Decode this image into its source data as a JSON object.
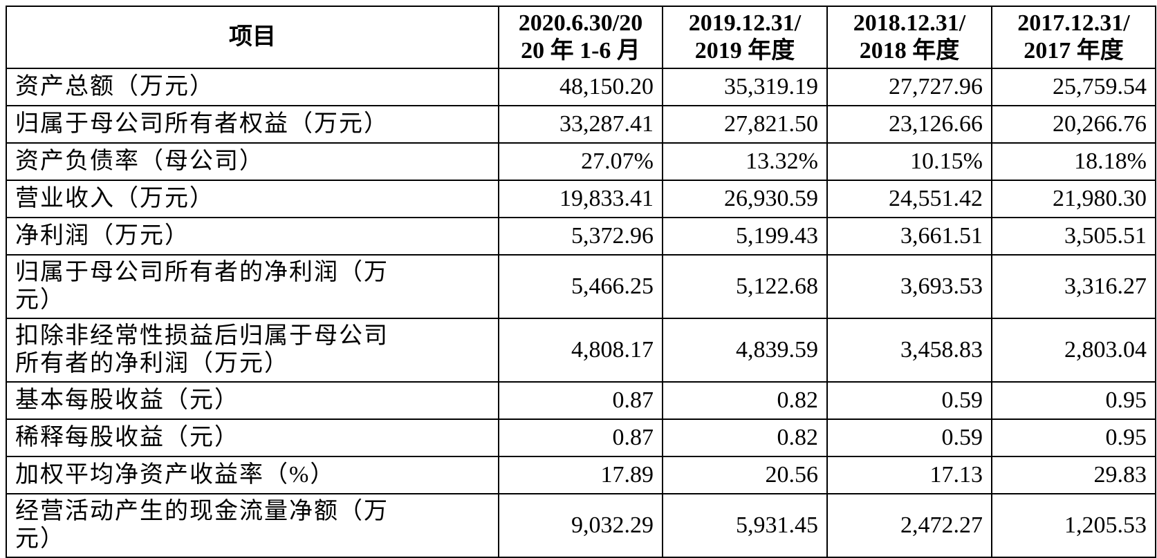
{
  "header": {
    "columns": [
      [
        "项目"
      ],
      [
        "2020.6.30/20",
        "20 年 1-6 月"
      ],
      [
        "2019.12.31/",
        "2019 年度"
      ],
      [
        "2018.12.31/",
        "2018 年度"
      ],
      [
        "2017.12.31/",
        "2017 年度"
      ]
    ]
  },
  "table": {
    "rows": [
      [
        "资产总额（万元）",
        "48,150.20",
        "35,319.19",
        "27,727.96",
        "25,759.54"
      ],
      [
        "归属于母公司所有者权益（万元）",
        "33,287.41",
        "27,821.50",
        "23,126.66",
        "20,266.76"
      ],
      [
        "资产负债率（母公司）",
        "27.07%",
        "13.32%",
        "10.15%",
        "18.18%"
      ],
      [
        "营业收入（万元）",
        "19,833.41",
        "26,930.59",
        "24,551.42",
        "21,980.30"
      ],
      [
        "净利润（万元）",
        "5,372.96",
        "5,199.43",
        "3,661.51",
        "3,505.51"
      ],
      [
        "归属于母公司所有者的净利润（万元）",
        "5,466.25",
        "5,122.68",
        "3,693.53",
        "3,316.27"
      ],
      [
        "扣除非经常性损益后归属于母公司所有者的净利润（万元）",
        "4,808.17",
        "4,839.59",
        "3,458.83",
        "2,803.04"
      ],
      [
        "基本每股收益（元）",
        "0.87",
        "0.82",
        "0.59",
        "0.95"
      ],
      [
        "稀释每股收益（元）",
        "0.87",
        "0.82",
        "0.59",
        "0.95"
      ],
      [
        "加权平均净资产收益率（%）",
        "17.89",
        "20.56",
        "17.13",
        "29.83"
      ],
      [
        "经营活动产生的现金流量净额（万元）",
        "9,032.29",
        "5,931.45",
        "2,472.27",
        "1,205.53"
      ]
    ]
  }
}
